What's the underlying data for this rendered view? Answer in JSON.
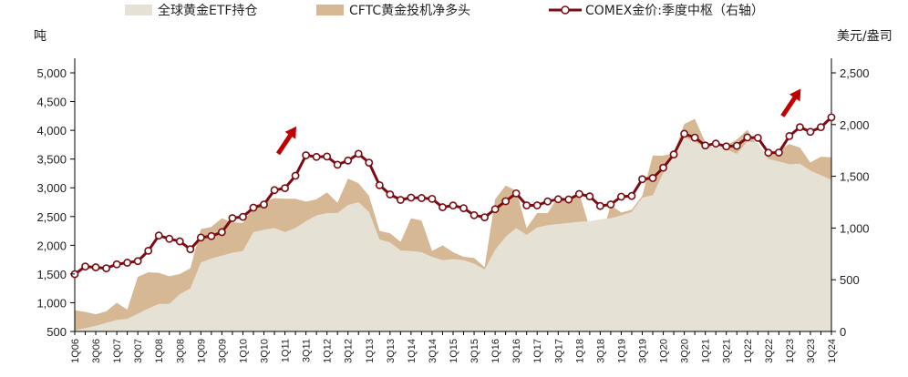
{
  "chart_data": {
    "type": "area",
    "y_left_unit": "吨",
    "y_right_unit": "美元/盎司",
    "y_left_ticks": [
      "500",
      "1,000",
      "1,500",
      "2,000",
      "2,500",
      "3,000",
      "3,500",
      "4,000",
      "4,500",
      "5,000"
    ],
    "y_right_ticks": [
      "0",
      "500",
      "1,000",
      "1,500",
      "2,000",
      "2,500"
    ],
    "ylim_left": [
      500,
      5000
    ],
    "ylim_right": [
      0,
      2500
    ],
    "x": [
      "1Q06",
      "2Q06",
      "3Q06",
      "4Q06",
      "1Q07",
      "2Q07",
      "3Q07",
      "4Q07",
      "1Q08",
      "2Q08",
      "3Q08",
      "4Q08",
      "1Q09",
      "2Q09",
      "3Q09",
      "4Q09",
      "1Q10",
      "2Q10",
      "3Q10",
      "4Q10",
      "1Q11",
      "2Q11",
      "3Q11",
      "4Q11",
      "1Q12",
      "2Q12",
      "3Q12",
      "4Q12",
      "1Q13",
      "2Q13",
      "3Q13",
      "4Q13",
      "1Q14",
      "2Q14",
      "3Q14",
      "4Q14",
      "1Q15",
      "2Q15",
      "3Q15",
      "4Q15",
      "1Q16",
      "2Q16",
      "3Q16",
      "4Q16",
      "1Q17",
      "2Q17",
      "3Q17",
      "4Q17",
      "1Q18",
      "2Q18",
      "3Q18",
      "4Q18",
      "1Q19",
      "2Q19",
      "3Q19",
      "4Q19",
      "1Q20",
      "2Q20",
      "3Q20",
      "4Q20",
      "1Q21",
      "2Q21",
      "3Q21",
      "4Q21",
      "1Q22",
      "2Q22",
      "3Q22",
      "4Q22",
      "1Q23",
      "2Q23",
      "3Q23",
      "4Q23",
      "1Q24"
    ],
    "x_tick_labels": [
      "1Q06",
      "3Q06",
      "1Q07",
      "3Q07",
      "1Q08",
      "3Q08",
      "1Q09",
      "3Q09",
      "1Q10",
      "3Q10",
      "1Q11",
      "3Q11",
      "1Q12",
      "3Q12",
      "1Q13",
      "3Q13",
      "1Q14",
      "3Q14",
      "1Q15",
      "3Q15",
      "1Q16",
      "3Q16",
      "1Q17",
      "3Q17",
      "1Q18",
      "3Q18",
      "1Q19",
      "3Q19",
      "1Q20",
      "3Q20",
      "1Q21",
      "3Q21",
      "1Q22",
      "3Q22",
      "1Q23",
      "3Q23",
      "1Q24"
    ],
    "series": [
      {
        "name": "全球黄金ETF持仓",
        "axis": "left",
        "kind": "area",
        "color": "#e6e1d5",
        "values": [
          520,
          560,
          600,
          650,
          700,
          720,
          810,
          900,
          980,
          980,
          1150,
          1250,
          1700,
          1770,
          1820,
          1870,
          1900,
          2230,
          2270,
          2300,
          2230,
          2300,
          2420,
          2520,
          2560,
          2560,
          2700,
          2750,
          2580,
          2100,
          2050,
          1910,
          1900,
          1880,
          1800,
          1740,
          1760,
          1740,
          1680,
          1580,
          1920,
          2150,
          2300,
          2180,
          2310,
          2350,
          2370,
          2390,
          2410,
          2420,
          2450,
          2470,
          2520,
          2580,
          2830,
          2870,
          3260,
          3650,
          3880,
          3800,
          3700,
          3710,
          3670,
          3590,
          3810,
          3780,
          3500,
          3460,
          3410,
          3420,
          3300,
          3220,
          3140
        ]
      },
      {
        "name": "CFTC黄金投机净多头",
        "axis": "left",
        "kind": "area",
        "color": "#d6b895",
        "values": [
          870,
          840,
          800,
          850,
          1000,
          880,
          1450,
          1530,
          1520,
          1460,
          1500,
          1600,
          2280,
          2320,
          2470,
          2400,
          2390,
          2680,
          2760,
          2820,
          2810,
          2810,
          2760,
          2800,
          2920,
          2740,
          3160,
          3080,
          2860,
          2250,
          2210,
          2060,
          2470,
          2430,
          1900,
          2000,
          1880,
          1800,
          1780,
          1620,
          2800,
          3040,
          2950,
          2300,
          2560,
          2560,
          2850,
          2730,
          2900,
          2300,
          2060,
          2700,
          2570,
          2620,
          2860,
          3560,
          3560,
          3600,
          4110,
          4200,
          3790,
          3660,
          3740,
          3840,
          4010,
          3710,
          3570,
          3660,
          3760,
          3700,
          3440,
          3540,
          3530
        ]
      },
      {
        "name": "COMEX金价:季度中枢（右轴）",
        "axis": "right",
        "kind": "line",
        "color": "#7a0c12",
        "values": [
          554,
          628,
          620,
          611,
          649,
          665,
          680,
          780,
          927,
          896,
          871,
          795,
          908,
          922,
          960,
          1096,
          1108,
          1197,
          1227,
          1366,
          1385,
          1505,
          1703,
          1688,
          1691,
          1612,
          1652,
          1718,
          1632,
          1414,
          1325,
          1272,
          1294,
          1290,
          1282,
          1201,
          1218,
          1192,
          1124,
          1104,
          1182,
          1259,
          1335,
          1219,
          1219,
          1257,
          1278,
          1276,
          1329,
          1306,
          1213,
          1228,
          1303,
          1310,
          1472,
          1483,
          1583,
          1711,
          1911,
          1874,
          1798,
          1816,
          1789,
          1795,
          1876,
          1872,
          1728,
          1730,
          1889,
          1975,
          1930,
          1975,
          2070
        ]
      }
    ],
    "legend": [
      "全球黄金ETF持仓",
      "CFTC黄金投机净多头",
      "COMEX金价:季度中枢（右轴）"
    ],
    "legend_position": "top",
    "annotations": [
      {
        "type": "arrow",
        "near": "4Q10",
        "color": "#c00000"
      },
      {
        "type": "arrow",
        "near": "4Q22",
        "color": "#c00000"
      }
    ]
  }
}
